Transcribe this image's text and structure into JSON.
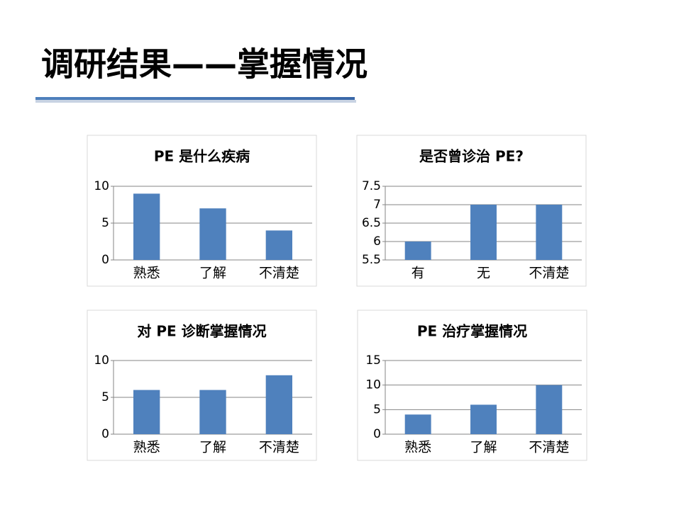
{
  "title": "调研结果——掌握情况",
  "chart_data": [
    {
      "type": "bar",
      "title": "PE 是什么疾病",
      "categories": [
        "熟悉",
        "了解",
        "不清楚"
      ],
      "values": [
        9,
        7,
        4
      ],
      "color": "#4f81bd",
      "ylim": [
        0,
        10
      ],
      "yticks": [
        0,
        5,
        10
      ],
      "grid": true
    },
    {
      "type": "bar",
      "title": "是否曾诊治 PE?",
      "categories": [
        "有",
        "无",
        "不清楚"
      ],
      "values": [
        6,
        7,
        7
      ],
      "color": "#4f81bd",
      "ylim": [
        5.5,
        7.5
      ],
      "yticks": [
        5.5,
        6,
        6.5,
        7,
        7.5
      ],
      "grid": true
    },
    {
      "type": "bar",
      "title": "对 PE 诊断掌握情况",
      "categories": [
        "熟悉",
        "了解",
        "不清楚"
      ],
      "values": [
        6,
        6,
        8
      ],
      "color": "#4f81bd",
      "ylim": [
        0,
        10
      ],
      "yticks": [
        0,
        5,
        10
      ],
      "grid": true
    },
    {
      "type": "bar",
      "title": "PE 治疗掌握情况",
      "categories": [
        "熟悉",
        "了解",
        "不清楚"
      ],
      "values": [
        4,
        6,
        10
      ],
      "color": "#4f81bd",
      "ylim": [
        0,
        15
      ],
      "yticks": [
        0,
        5,
        10,
        15
      ],
      "grid": true
    }
  ]
}
